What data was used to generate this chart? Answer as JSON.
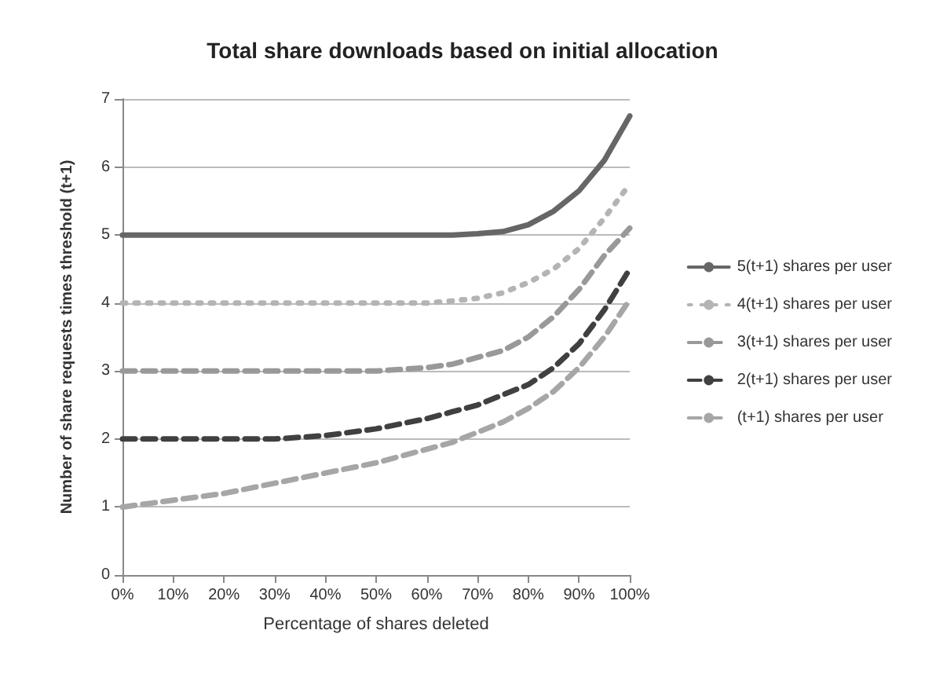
{
  "chart_data": {
    "type": "line",
    "title": "Total share downloads based on initial allocation",
    "xlabel": "Percentage of shares deleted",
    "ylabel": "Number of share requests times threshold (t+1)",
    "x": [
      0,
      10,
      20,
      30,
      40,
      50,
      60,
      65,
      70,
      75,
      80,
      85,
      90,
      95,
      100
    ],
    "series": [
      {
        "name": "5(t+1) shares per user",
        "color": "#666666",
        "line_style": "solid",
        "values": [
          5,
          5,
          5,
          5,
          5,
          5,
          5,
          5,
          5.02,
          5.05,
          5.15,
          5.35,
          5.65,
          6.1,
          6.75
        ]
      },
      {
        "name": "4(t+1) shares per user",
        "color": "#b4b4b4",
        "line_style": "dotted",
        "values": [
          4,
          4,
          4,
          4,
          4,
          4,
          4,
          4.03,
          4.07,
          4.15,
          4.3,
          4.5,
          4.8,
          5.25,
          5.75
        ]
      },
      {
        "name": "3(t+1) shares per user",
        "color": "#999999",
        "line_style": "dashed",
        "values": [
          3,
          3,
          3,
          3,
          3,
          3,
          3.05,
          3.1,
          3.2,
          3.3,
          3.5,
          3.8,
          4.2,
          4.7,
          5.1
        ]
      },
      {
        "name": "2(t+1) shares per user",
        "color": "#404040",
        "line_style": "dashed",
        "values": [
          2,
          2,
          2,
          2,
          2.05,
          2.15,
          2.3,
          2.4,
          2.5,
          2.65,
          2.8,
          3.05,
          3.4,
          3.9,
          4.5
        ]
      },
      {
        "name": "(t+1) shares per user",
        "color": "#a6a6a6",
        "line_style": "dashed",
        "values": [
          1,
          1.1,
          1.2,
          1.35,
          1.5,
          1.65,
          1.85,
          1.95,
          2.1,
          2.25,
          2.45,
          2.7,
          3.05,
          3.5,
          4.05
        ]
      }
    ],
    "xlim": [
      0,
      100
    ],
    "xticks": [
      {
        "value": 0,
        "label": "0%"
      },
      {
        "value": 10,
        "label": "10%"
      },
      {
        "value": 20,
        "label": "20%"
      },
      {
        "value": 30,
        "label": "30%"
      },
      {
        "value": 40,
        "label": "40%"
      },
      {
        "value": 50,
        "label": "50%"
      },
      {
        "value": 60,
        "label": "60%"
      },
      {
        "value": 70,
        "label": "70%"
      },
      {
        "value": 80,
        "label": "80%"
      },
      {
        "value": 90,
        "label": "90%"
      },
      {
        "value": 100,
        "label": "100%"
      }
    ],
    "ylim": [
      0,
      7
    ],
    "yticks": [
      0,
      1,
      2,
      3,
      4,
      5,
      6,
      7
    ],
    "grid": "y",
    "legend": "right",
    "marker": "none"
  }
}
